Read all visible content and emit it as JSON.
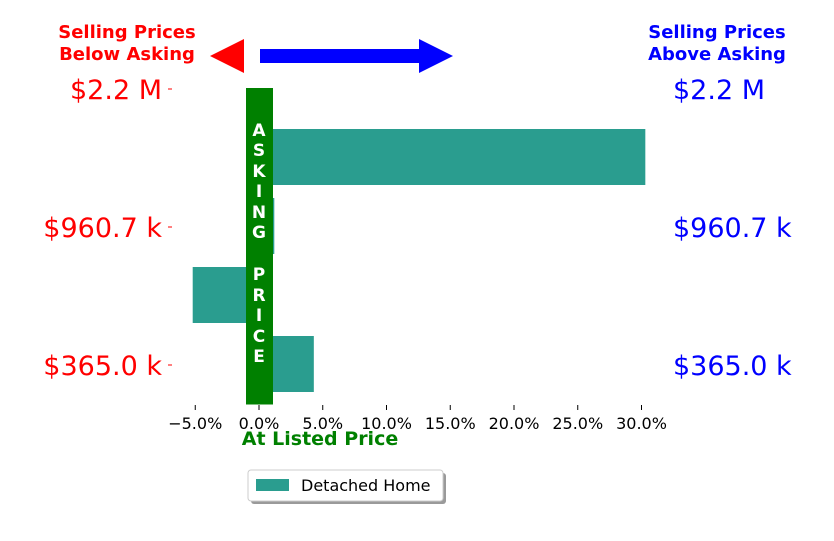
{
  "header": {
    "left_title_lines": [
      "Selling Prices",
      "Below Asking"
    ],
    "right_title_lines": [
      "Selling Prices",
      "Above Asking"
    ],
    "left_color": "#ff0000",
    "right_color": "#0000ff"
  },
  "asking_price_label": "ASKING PRICE",
  "asking_price_color": "#008000",
  "x_axis_label": "At Listed Price",
  "x_axis_label_color": "#008000",
  "chart_data": {
    "type": "bar",
    "orientation": "horizontal",
    "x_ticks": [
      -5.0,
      0.0,
      5.0,
      10.0,
      15.0,
      20.0,
      25.0,
      30.0
    ],
    "x_tick_labels": [
      "−5.0%",
      "0.0%",
      "5.0%",
      "10.0%",
      "15.0%",
      "20.0%",
      "25.0%",
      "30.0%"
    ],
    "xlim": [
      -7.2,
      33.0
    ],
    "y_ticks": [
      {
        "price": 2200000,
        "label": "$2.2 M"
      },
      {
        "price": 960700,
        "label": "$960.7 k"
      },
      {
        "price": 365000,
        "label": "$365.0 k"
      }
    ],
    "series": [
      {
        "name": "Detached Home",
        "color": "#2a9d8f",
        "values": [
          30.3,
          1.2,
          -5.2,
          4.3
        ]
      }
    ],
    "legend_position": "bottom-center"
  }
}
